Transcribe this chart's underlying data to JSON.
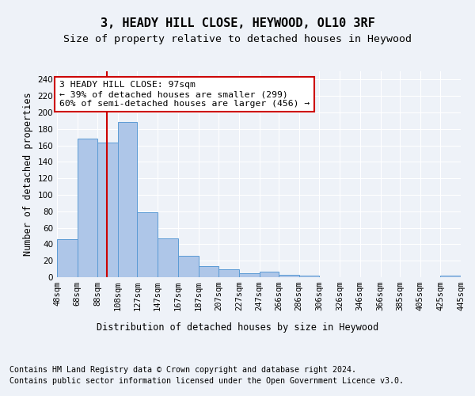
{
  "title1": "3, HEADY HILL CLOSE, HEYWOOD, OL10 3RF",
  "title2": "Size of property relative to detached houses in Heywood",
  "xlabel": "Distribution of detached houses by size in Heywood",
  "ylabel": "Number of detached properties",
  "footer1": "Contains HM Land Registry data © Crown copyright and database right 2024.",
  "footer2": "Contains public sector information licensed under the Open Government Licence v3.0.",
  "bin_edges": [
    48,
    68,
    88,
    108,
    127,
    147,
    167,
    187,
    207,
    227,
    247,
    266,
    286,
    306,
    326,
    346,
    366,
    385,
    405,
    425,
    445
  ],
  "bar_heights": [
    46,
    168,
    163,
    188,
    79,
    47,
    26,
    13,
    10,
    5,
    7,
    3,
    2,
    0,
    0,
    0,
    0,
    0,
    0,
    2
  ],
  "bar_color": "#aec6e8",
  "bar_edge_color": "#5b9bd5",
  "vline_x": 97,
  "vline_color": "#cc0000",
  "annotation_line1": "3 HEADY HILL CLOSE: 97sqm",
  "annotation_line2": "← 39% of detached houses are smaller (299)",
  "annotation_line3": "60% of semi-detached houses are larger (456) →",
  "annotation_box_color": "white",
  "annotation_box_edge": "#cc0000",
  "ylim": [
    0,
    250
  ],
  "yticks": [
    0,
    20,
    40,
    60,
    80,
    100,
    120,
    140,
    160,
    180,
    200,
    220,
    240
  ],
  "tick_labels": [
    "48sqm",
    "68sqm",
    "88sqm",
    "108sqm",
    "127sqm",
    "147sqm",
    "167sqm",
    "187sqm",
    "207sqm",
    "227sqm",
    "247sqm",
    "266sqm",
    "286sqm",
    "306sqm",
    "326sqm",
    "346sqm",
    "366sqm",
    "385sqm",
    "405sqm",
    "425sqm",
    "445sqm"
  ],
  "background_color": "#eef2f8",
  "plot_bg_color": "#eef2f8",
  "grid_color": "#ffffff",
  "title1_fontsize": 11,
  "title2_fontsize": 9.5,
  "annotation_fontsize": 8.2,
  "axis_label_fontsize": 8.5,
  "ylabel_fontsize": 8.5,
  "tick_fontsize": 7.5,
  "footer_fontsize": 7.2
}
